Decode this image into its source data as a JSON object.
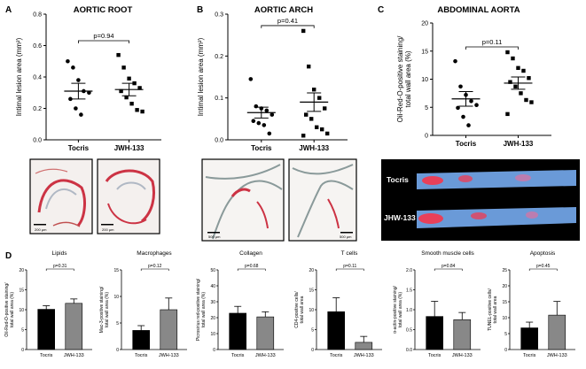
{
  "panels": [
    {
      "letter": "A",
      "title": "AORTIC ROOT",
      "ylabel": "Intimal lesion area (mm²)",
      "pvalue": "p=0.94",
      "categories": [
        "Tocris",
        "JWH-133"
      ],
      "ylim": [
        0,
        0.8
      ],
      "ticks": [
        "0.0",
        "0.2",
        "0.4",
        "0.6",
        "0.8"
      ],
      "tickvals": [
        0,
        0.2,
        0.4,
        0.6,
        0.8
      ],
      "scale_bars": [
        "200 µm",
        "200 µm"
      ]
    },
    {
      "letter": "B",
      "title": "AORTIC ARCH",
      "ylabel": "Intimal lesion area (mm²)",
      "pvalue": "p=0.41",
      "categories": [
        "Tocris",
        "JWH-133"
      ],
      "ylim": [
        0,
        0.3
      ],
      "ticks": [
        "0.0",
        "0.1",
        "0.2",
        "0.3"
      ],
      "tickvals": [
        0,
        0.1,
        0.2,
        0.3
      ],
      "scale_bars": [
        "500 µm",
        "500 µm"
      ]
    },
    {
      "letter": "C",
      "title": "ABDOMINAL AORTA",
      "ylabel": "Oil-Red-O-positive staining/ total wall area (%)",
      "pvalue": "p=0.11",
      "categories": [
        "Tocris",
        "JWH-133"
      ],
      "ylim": [
        0,
        20
      ],
      "ticks": [
        "0",
        "5",
        "10",
        "15",
        "20"
      ],
      "tickvals": [
        0,
        5,
        10,
        15,
        20
      ],
      "aorta_labels": [
        "Tocris",
        "JHW-133"
      ]
    }
  ],
  "panel_d_letter": "D",
  "chart_data": [
    {
      "type": "scatter",
      "title": "AORTIC ROOT",
      "ylabel": "Intimal lesion area (mm²)",
      "ylim": [
        0,
        0.8
      ],
      "categories": [
        "Tocris",
        "JWH-133"
      ],
      "series": [
        {
          "name": "Tocris",
          "values": [
            0.5,
            0.46,
            0.38,
            0.31,
            0.3,
            0.26,
            0.2,
            0.16
          ],
          "mean": 0.31,
          "sem": 0.05
        },
        {
          "name": "JWH-133",
          "values": [
            0.54,
            0.46,
            0.39,
            0.36,
            0.33,
            0.31,
            0.27,
            0.23,
            0.19,
            0.18
          ],
          "mean": 0.32,
          "sem": 0.04
        }
      ],
      "pvalue": "p=0.94"
    },
    {
      "type": "scatter",
      "title": "AORTIC ARCH",
      "ylabel": "Intimal lesion area (mm²)",
      "ylim": [
        0,
        0.3
      ],
      "categories": [
        "Tocris",
        "JWH-133"
      ],
      "series": [
        {
          "name": "Tocris",
          "values": [
            0.145,
            0.08,
            0.075,
            0.07,
            0.06,
            0.045,
            0.04,
            0.035,
            0.015
          ],
          "mean": 0.065,
          "sem": 0.013
        },
        {
          "name": "JWH-133",
          "values": [
            0.26,
            0.175,
            0.12,
            0.1,
            0.075,
            0.06,
            0.05,
            0.03,
            0.025,
            0.015,
            0.01
          ],
          "mean": 0.09,
          "sem": 0.022
        }
      ],
      "pvalue": "p=0.41"
    },
    {
      "type": "scatter",
      "title": "ABDOMINAL AORTA",
      "ylabel": "Oil-Red-O-positive staining/ total wall area (%)",
      "ylim": [
        0,
        20
      ],
      "categories": [
        "Tocris",
        "JWH-133"
      ],
      "series": [
        {
          "name": "Tocris",
          "values": [
            13.2,
            8.7,
            7.2,
            6.1,
            5.4,
            4.9,
            3.3,
            1.8
          ],
          "mean": 6.5,
          "sem": 1.3
        },
        {
          "name": "JWH-133",
          "values": [
            14.8,
            13.7,
            12.0,
            11.5,
            10.2,
            9.5,
            8.7,
            7.5,
            6.3,
            5.9,
            3.8
          ],
          "mean": 9.3,
          "sem": 1.1
        }
      ],
      "pvalue": "p=0.11"
    },
    {
      "type": "bar",
      "title": "Lipids",
      "ylabel": "Oil-Red-O-positive staining/ total wall area (%)",
      "ylim": [
        0,
        20
      ],
      "ticks": [
        0,
        5,
        10,
        15,
        20
      ],
      "categories": [
        "Tocris",
        "JWH-133"
      ],
      "values": [
        10.1,
        11.6
      ],
      "errors": [
        0.9,
        1.1
      ],
      "pvalue": "p=0.31"
    },
    {
      "type": "bar",
      "title": "Macrophages",
      "ylabel": "Mac-3-positive staining/ total wall area (%)",
      "ylim": [
        0,
        15
      ],
      "ticks": [
        0,
        5,
        10,
        15
      ],
      "categories": [
        "Tocris",
        "JWH-133"
      ],
      "values": [
        3.6,
        7.5
      ],
      "errors": [
        0.9,
        2.2
      ],
      "pvalue": "p=0.12"
    },
    {
      "type": "bar",
      "title": "Collagen",
      "ylabel": "Picrosirius red-positive staining/ total wall area (%)",
      "ylim": [
        0,
        50
      ],
      "ticks": [
        0,
        10,
        20,
        30,
        40,
        50
      ],
      "categories": [
        "Tocris",
        "JWH-133"
      ],
      "values": [
        22.8,
        20.5
      ],
      "errors": [
        4.3,
        3.2
      ],
      "pvalue": "p=0.68"
    },
    {
      "type": "bar",
      "title": "T cells",
      "ylabel": "CD4-positive cells/ total wall area",
      "ylim": [
        0,
        20
      ],
      "ticks": [
        0,
        5,
        10,
        15,
        20
      ],
      "categories": [
        "Tocris",
        "JWH-133"
      ],
      "values": [
        9.5,
        1.8
      ],
      "errors": [
        3.5,
        1.5
      ],
      "pvalue": "p=0.11"
    },
    {
      "type": "bar",
      "title": "Smooth muscle cells",
      "ylabel": "α-actin-positive staining/ total wall area (%)",
      "ylim": [
        0,
        2.0
      ],
      "ticks": [
        0.0,
        0.5,
        1.0,
        1.5,
        2.0
      ],
      "categories": [
        "Tocris",
        "JWH-133"
      ],
      "values": [
        0.83,
        0.75
      ],
      "errors": [
        0.38,
        0.18
      ],
      "pvalue": "p=0.84"
    },
    {
      "type": "bar",
      "title": "Apoptosis",
      "ylabel": "TUNEL-positive cells/ total wall area",
      "ylim": [
        0,
        25
      ],
      "ticks": [
        0,
        5,
        10,
        15,
        20,
        25
      ],
      "categories": [
        "Tocris",
        "JWH-133"
      ],
      "values": [
        6.8,
        10.8
      ],
      "errors": [
        1.8,
        4.3
      ],
      "pvalue": "p=0.45"
    }
  ],
  "colors": {
    "tocris_bar": "#000000",
    "jwh_bar": "#888888",
    "aorta_bg": "#000000",
    "aorta_tissue": "#6a9ad8",
    "aorta_lesion": "#e8405a"
  }
}
